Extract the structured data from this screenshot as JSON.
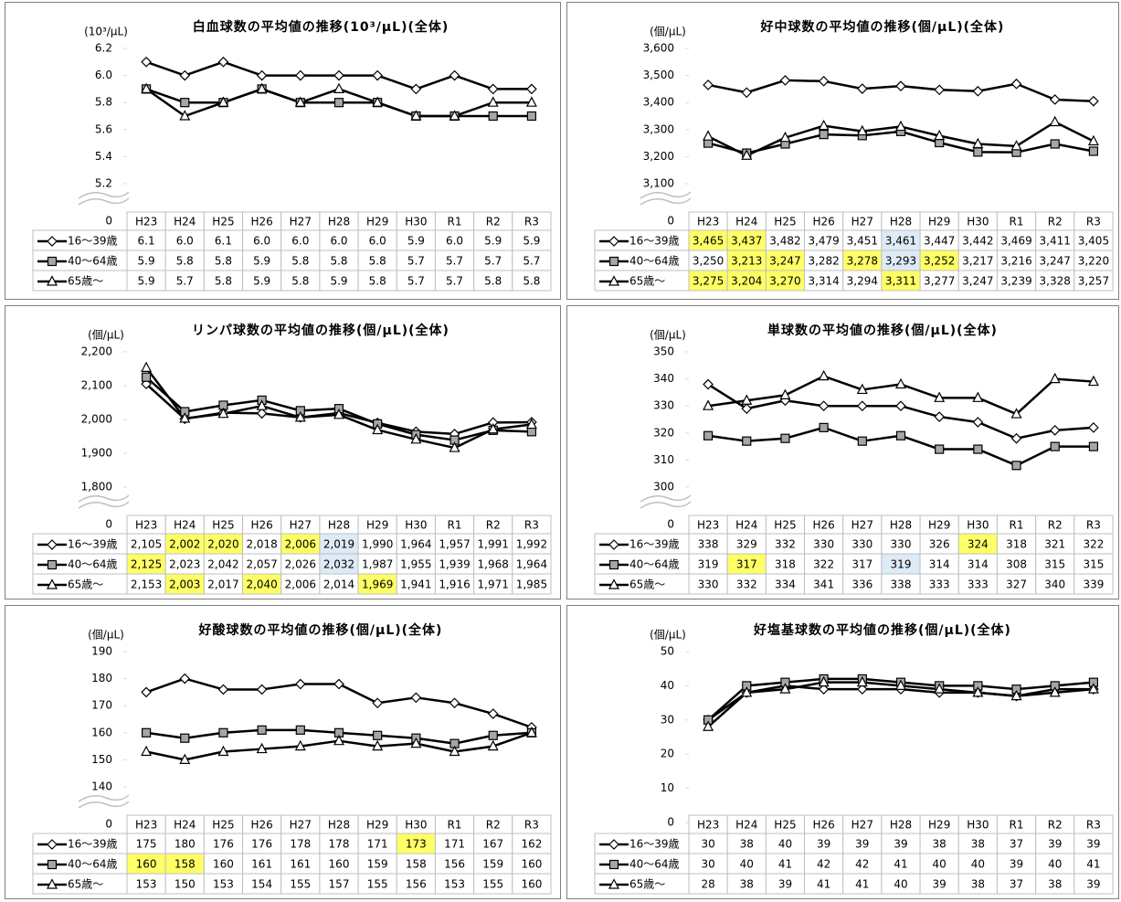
{
  "chart_data": [
    {
      "type": "line",
      "title": "白血球数の平均値の推移(10³/μL)(全体)",
      "y_unit": "(10³/μL)",
      "categories": [
        "H23",
        "H24",
        "H25",
        "H26",
        "H27",
        "H28",
        "H29",
        "H30",
        "R1",
        "R2",
        "R3"
      ],
      "ylim": [
        5.2,
        6.2
      ],
      "yticks": [
        5.2,
        5.4,
        5.6,
        5.8,
        {
          "value": 6,
          "label": "6.0"
        },
        6.2
      ],
      "axis_break_value": 0,
      "series": [
        {
          "name": "16〜39歳",
          "color": "#000000",
          "marker": "diamond",
          "marker_fill": "#ffffff",
          "values": [
            6.1,
            6,
            6.1,
            6,
            6,
            6,
            6,
            5.9,
            6,
            5.9,
            5.9
          ],
          "value_labels": [
            "6.1",
            "6.0",
            "6.1",
            "6.0",
            "6.0",
            "6.0",
            "6.0",
            "5.9",
            "6.0",
            "5.9",
            "5.9"
          ],
          "highlight_cells": []
        },
        {
          "name": "40〜64歳",
          "color": "#000000",
          "marker": "square",
          "marker_fill": "#a6a6a6",
          "values": [
            5.9,
            5.8,
            5.8,
            5.9,
            5.8,
            5.8,
            5.8,
            5.7,
            5.7,
            5.7,
            5.7
          ],
          "highlight_cells": []
        },
        {
          "name": "65歳〜",
          "color": "#000000",
          "marker": "triangle",
          "marker_fill": "#ffffff",
          "values": [
            5.9,
            5.7,
            5.8,
            5.9,
            5.8,
            5.9,
            5.8,
            5.7,
            5.7,
            5.8,
            5.8
          ],
          "highlight_cells": []
        }
      ]
    },
    {
      "type": "line",
      "title": "好中球数の平均値の推移(個/μL)(全体)",
      "y_unit": "(個/μL)",
      "categories": [
        "H23",
        "H24",
        "H25",
        "H26",
        "H27",
        "H28",
        "H29",
        "H30",
        "R1",
        "R2",
        "R3"
      ],
      "ylim": [
        3100,
        3600
      ],
      "yticks": [
        {
          "value": 3100,
          "label": "3,100"
        },
        {
          "value": 3200,
          "label": "3,200"
        },
        {
          "value": 3300,
          "label": "3,300"
        },
        {
          "value": 3400,
          "label": "3,400"
        },
        {
          "value": 3500,
          "label": "3,500"
        },
        {
          "value": 3600,
          "label": "3,600"
        }
      ],
      "axis_break_value": 0,
      "series": [
        {
          "name": "16〜39歳",
          "color": "#000000",
          "marker": "diamond",
          "marker_fill": "#ffffff",
          "values": [
            3465,
            3437,
            3482,
            3479,
            3451,
            3461,
            3447,
            3442,
            3469,
            3411,
            3405
          ],
          "value_labels": [
            "3,465",
            "3,437",
            "3,482",
            "3,479",
            "3,451",
            "3,461",
            "3,447",
            "3,442",
            "3,469",
            "3,411",
            "3,405"
          ],
          "highlight_cells": [
            {
              "index": 0,
              "color": "#ffff66"
            },
            {
              "index": 1,
              "color": "#ffff66"
            },
            {
              "index": 5,
              "color": "#ddebf7"
            }
          ]
        },
        {
          "name": "40〜64歳",
          "color": "#000000",
          "marker": "square",
          "marker_fill": "#a6a6a6",
          "values": [
            3250,
            3213,
            3247,
            3282,
            3278,
            3293,
            3252,
            3217,
            3216,
            3247,
            3220
          ],
          "value_labels": [
            "3,250",
            "3,213",
            "3,247",
            "3,282",
            "3,278",
            "3,293",
            "3,252",
            "3,217",
            "3,216",
            "3,247",
            "3,220"
          ],
          "highlight_cells": [
            {
              "index": 1,
              "color": "#ffff66"
            },
            {
              "index": 2,
              "color": "#ffff66"
            },
            {
              "index": 4,
              "color": "#ffff66"
            },
            {
              "index": 5,
              "color": "#ddebf7"
            },
            {
              "index": 6,
              "color": "#ffff66"
            }
          ]
        },
        {
          "name": "65歳〜",
          "color": "#000000",
          "marker": "triangle",
          "marker_fill": "#ffffff",
          "values": [
            3275,
            3204,
            3270,
            3314,
            3294,
            3311,
            3277,
            3247,
            3239,
            3328,
            3257
          ],
          "value_labels": [
            "3,275",
            "3,204",
            "3,270",
            "3,314",
            "3,294",
            "3,311",
            "3,277",
            "3,247",
            "3,239",
            "3,328",
            "3,257"
          ],
          "highlight_cells": [
            {
              "index": 0,
              "color": "#ffff66"
            },
            {
              "index": 1,
              "color": "#ffff66"
            },
            {
              "index": 2,
              "color": "#ffff66"
            },
            {
              "index": 5,
              "color": "#ffff66"
            }
          ]
        }
      ]
    },
    {
      "type": "line",
      "title": "リンパ球数の平均値の推移(個/μL)(全体)",
      "y_unit": "(個/μL)",
      "categories": [
        "H23",
        "H24",
        "H25",
        "H26",
        "H27",
        "H28",
        "H29",
        "H30",
        "R1",
        "R2",
        "R3"
      ],
      "ylim": [
        1800,
        2200
      ],
      "yticks": [
        {
          "value": 1800,
          "label": "1,800"
        },
        {
          "value": 1900,
          "label": "1,900"
        },
        {
          "value": 2000,
          "label": "2,000"
        },
        {
          "value": 2100,
          "label": "2,100"
        },
        {
          "value": 2200,
          "label": "2,200"
        }
      ],
      "axis_break_value": 0,
      "series": [
        {
          "name": "16〜39歳",
          "color": "#000000",
          "marker": "diamond",
          "marker_fill": "#ffffff",
          "values": [
            2105,
            2002,
            2020,
            2018,
            2006,
            2019,
            1990,
            1964,
            1957,
            1991,
            1992
          ],
          "value_labels": [
            "2,105",
            "2,002",
            "2,020",
            "2,018",
            "2,006",
            "2,019",
            "1,990",
            "1,964",
            "1,957",
            "1,991",
            "1,992"
          ],
          "highlight_cells": [
            {
              "index": 1,
              "color": "#ffff66"
            },
            {
              "index": 2,
              "color": "#ffff66"
            },
            {
              "index": 4,
              "color": "#ffff66"
            },
            {
              "index": 5,
              "color": "#ddebf7"
            }
          ]
        },
        {
          "name": "40〜64歳",
          "color": "#000000",
          "marker": "square",
          "marker_fill": "#a6a6a6",
          "values": [
            2125,
            2023,
            2042,
            2057,
            2026,
            2032,
            1987,
            1955,
            1939,
            1968,
            1964
          ],
          "value_labels": [
            "2,125",
            "2,023",
            "2,042",
            "2,057",
            "2,026",
            "2,032",
            "1,987",
            "1,955",
            "1,939",
            "1,968",
            "1,964"
          ],
          "highlight_cells": [
            {
              "index": 0,
              "color": "#ffff66"
            },
            {
              "index": 5,
              "color": "#ddebf7"
            }
          ]
        },
        {
          "name": "65歳〜",
          "color": "#000000",
          "marker": "triangle",
          "marker_fill": "#ffffff",
          "values": [
            2153,
            2003,
            2017,
            2040,
            2006,
            2014,
            1969,
            1941,
            1916,
            1971,
            1985
          ],
          "value_labels": [
            "2,153",
            "2,003",
            "2,017",
            "2,040",
            "2,006",
            "2,014",
            "1,969",
            "1,941",
            "1,916",
            "1,971",
            "1,985"
          ],
          "highlight_cells": [
            {
              "index": 1,
              "color": "#ffff66"
            },
            {
              "index": 3,
              "color": "#ffff66"
            },
            {
              "index": 6,
              "color": "#ffff66"
            }
          ]
        }
      ]
    },
    {
      "type": "line",
      "title": "単球数の平均値の推移(個/μL)(全体)",
      "y_unit": "(個/μL)",
      "categories": [
        "H23",
        "H24",
        "H25",
        "H26",
        "H27",
        "H28",
        "H29",
        "H30",
        "R1",
        "R2",
        "R3"
      ],
      "ylim": [
        300,
        350
      ],
      "yticks": [
        300,
        310,
        320,
        330,
        340,
        350
      ],
      "axis_break_value": 0,
      "series": [
        {
          "name": "16〜39歳",
          "color": "#000000",
          "marker": "diamond",
          "marker_fill": "#ffffff",
          "values": [
            338,
            329,
            332,
            330,
            330,
            330,
            326,
            324,
            318,
            321,
            322
          ],
          "highlight_cells": [
            {
              "index": 7,
              "color": "#ffff66"
            }
          ]
        },
        {
          "name": "40〜64歳",
          "color": "#000000",
          "marker": "square",
          "marker_fill": "#a6a6a6",
          "values": [
            319,
            317,
            318,
            322,
            317,
            319,
            314,
            314,
            308,
            315,
            315
          ],
          "highlight_cells": [
            {
              "index": 1,
              "color": "#ffff66"
            },
            {
              "index": 5,
              "color": "#ddebf7"
            }
          ]
        },
        {
          "name": "65歳〜",
          "color": "#000000",
          "marker": "triangle",
          "marker_fill": "#ffffff",
          "values": [
            330,
            332,
            334,
            341,
            336,
            338,
            333,
            333,
            327,
            340,
            339
          ],
          "highlight_cells": []
        }
      ]
    },
    {
      "type": "line",
      "title": "好酸球数の平均値の推移(個/μL)(全体)",
      "y_unit": "(個/μL)",
      "categories": [
        "H23",
        "H24",
        "H25",
        "H26",
        "H27",
        "H28",
        "H29",
        "H30",
        "R1",
        "R2",
        "R3"
      ],
      "ylim": [
        140,
        190
      ],
      "yticks": [
        140,
        150,
        160,
        170,
        180,
        190
      ],
      "axis_break_value": 0,
      "series": [
        {
          "name": "16〜39歳",
          "color": "#000000",
          "marker": "diamond",
          "marker_fill": "#ffffff",
          "values": [
            175,
            180,
            176,
            176,
            178,
            178,
            171,
            173,
            171,
            167,
            162
          ],
          "highlight_cells": [
            {
              "index": 7,
              "color": "#ffff66"
            }
          ]
        },
        {
          "name": "40〜64歳",
          "color": "#000000",
          "marker": "square",
          "marker_fill": "#a6a6a6",
          "values": [
            160,
            158,
            160,
            161,
            161,
            160,
            159,
            158,
            156,
            159,
            160
          ],
          "highlight_cells": [
            {
              "index": 0,
              "color": "#ffff66"
            },
            {
              "index": 1,
              "color": "#ffff66"
            }
          ]
        },
        {
          "name": "65歳〜",
          "color": "#000000",
          "marker": "triangle",
          "marker_fill": "#ffffff",
          "values": [
            153,
            150,
            153,
            154,
            155,
            157,
            155,
            156,
            153,
            155,
            160
          ],
          "highlight_cells": []
        }
      ]
    },
    {
      "type": "line",
      "title": "好塩基球数の平均値の推移(個/μL)(全体)",
      "y_unit": "(個/μL)",
      "categories": [
        "H23",
        "H24",
        "H25",
        "H26",
        "H27",
        "H28",
        "H29",
        "H30",
        "R1",
        "R2",
        "R3"
      ],
      "ylim": [
        0,
        50
      ],
      "yticks": [
        0,
        10,
        20,
        30,
        40,
        50
      ],
      "series": [
        {
          "name": "16〜39歳",
          "color": "#000000",
          "marker": "diamond",
          "marker_fill": "#ffffff",
          "values": [
            30,
            38,
            40,
            39,
            39,
            39,
            38,
            38,
            37,
            39,
            39
          ],
          "highlight_cells": []
        },
        {
          "name": "40〜64歳",
          "color": "#000000",
          "marker": "square",
          "marker_fill": "#a6a6a6",
          "values": [
            30,
            40,
            41,
            42,
            42,
            41,
            40,
            40,
            39,
            40,
            41
          ],
          "highlight_cells": []
        },
        {
          "name": "65歳〜",
          "color": "#000000",
          "marker": "triangle",
          "marker_fill": "#ffffff",
          "values": [
            28,
            38,
            39,
            41,
            41,
            40,
            39,
            38,
            37,
            38,
            39
          ],
          "highlight_cells": []
        }
      ]
    }
  ]
}
